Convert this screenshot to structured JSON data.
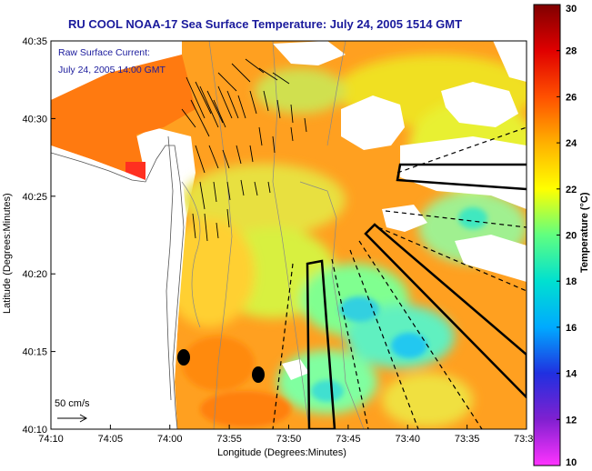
{
  "chart_data": {
    "type": "heatmap",
    "title": "RU COOL  NOAA-17  Sea Surface Temperature:  July 24, 2005 1514 GMT",
    "xlabel": "Longitude (Degrees:Minutes)",
    "ylabel": "Latitude (Degrees:Minutes)",
    "x_ticks": [
      "74:10",
      "74:05",
      "74:00",
      "73:55",
      "73:50",
      "73:45",
      "73:40",
      "73:35",
      "73:3"
    ],
    "y_ticks": [
      "40:35",
      "40:30",
      "40:25",
      "40:20",
      "40:15",
      "40:10"
    ],
    "colorbar": {
      "label": "Temperature (°C)",
      "ticks": [
        30,
        28,
        26,
        24,
        22,
        20,
        18,
        16,
        14,
        12,
        10
      ],
      "range": [
        10,
        30
      ],
      "colors": [
        "#ff33ff",
        "#8020d0",
        "#2030e0",
        "#00aaff",
        "#00e0d0",
        "#60ff80",
        "#ffff00",
        "#ffb000",
        "#ff5000",
        "#e00000",
        "#800000"
      ]
    },
    "annotations": {
      "current_label": "Raw Surface Current:",
      "current_time": "July 24, 2005 14:00 GMT",
      "scale": "50 cm/s"
    },
    "grid": false
  }
}
